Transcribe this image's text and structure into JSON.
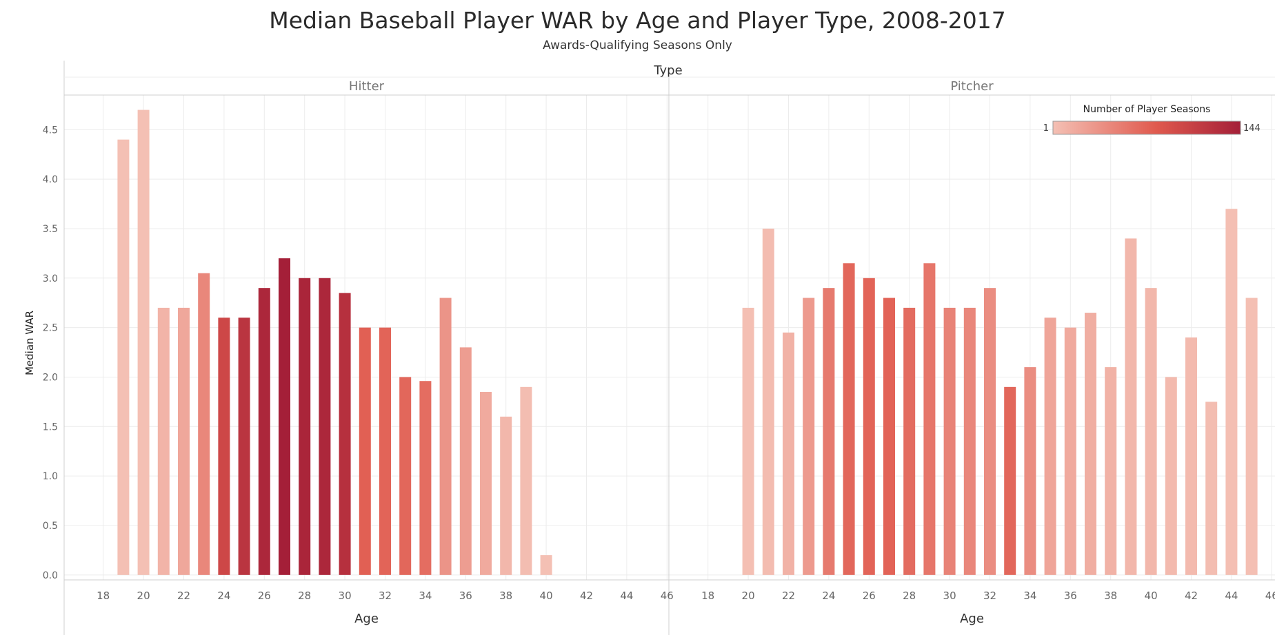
{
  "chart_data": {
    "type": "bar",
    "title": "Median Baseball Player WAR by Age and Player Type, 2008-2017",
    "subtitle": "Awards-Qualifying Seasons Only",
    "facet_label": "Type",
    "xlabel": "Age",
    "ylabel": "Median WAR",
    "xlim": [
      17,
      47
    ],
    "ylim": [
      -0.05,
      4.85
    ],
    "xticks": [
      "18",
      "20",
      "22",
      "24",
      "26",
      "28",
      "30",
      "32",
      "34",
      "36",
      "38",
      "40",
      "42",
      "44",
      "46"
    ],
    "yticks": [
      "0.0",
      "0.5",
      "1.0",
      "1.5",
      "2.0",
      "2.5",
      "3.0",
      "3.5",
      "4.0",
      "4.5"
    ],
    "grid": true,
    "legend": {
      "title": "Number of Player Seasons",
      "min_label": "1",
      "max_label": "144",
      "min": 1,
      "max": 144,
      "color_low": "#f4c0b4",
      "color_mid": "#e05a4e",
      "color_high": "#a41f38",
      "position": "top-right"
    },
    "panels": [
      {
        "name": "Hitter",
        "ages": [
          19,
          20,
          21,
          22,
          23,
          24,
          25,
          26,
          27,
          28,
          29,
          30,
          31,
          32,
          33,
          34,
          35,
          36,
          37,
          38,
          39,
          40
        ],
        "values": [
          4.4,
          4.7,
          2.7,
          2.7,
          3.05,
          2.6,
          2.6,
          2.9,
          3.2,
          3.0,
          3.0,
          2.85,
          2.5,
          2.5,
          2.0,
          1.96,
          2.8,
          2.3,
          1.85,
          1.6,
          1.9,
          0.2
        ],
        "seasons": [
          1,
          1,
          10,
          20,
          45,
          100,
          120,
          135,
          144,
          138,
          135,
          125,
          75,
          72,
          70,
          65,
          35,
          28,
          18,
          8,
          3,
          1
        ]
      },
      {
        "name": "Pitcher",
        "ages": [
          20,
          21,
          22,
          23,
          24,
          25,
          26,
          27,
          28,
          29,
          30,
          31,
          32,
          33,
          34,
          35,
          36,
          37,
          38,
          39,
          40,
          41,
          42,
          43,
          44,
          45
        ],
        "values": [
          2.7,
          3.5,
          2.45,
          2.8,
          2.9,
          3.15,
          3.0,
          2.8,
          2.7,
          3.15,
          2.7,
          2.7,
          2.9,
          1.9,
          2.1,
          2.6,
          2.5,
          2.65,
          2.1,
          3.4,
          2.9,
          2.0,
          2.4,
          1.75,
          3.7,
          2.8
        ],
        "seasons": [
          2,
          4,
          12,
          30,
          55,
          70,
          72,
          73,
          66,
          58,
          48,
          45,
          40,
          70,
          40,
          22,
          18,
          15,
          12,
          8,
          8,
          6,
          6,
          3,
          2,
          2
        ]
      }
    ]
  }
}
